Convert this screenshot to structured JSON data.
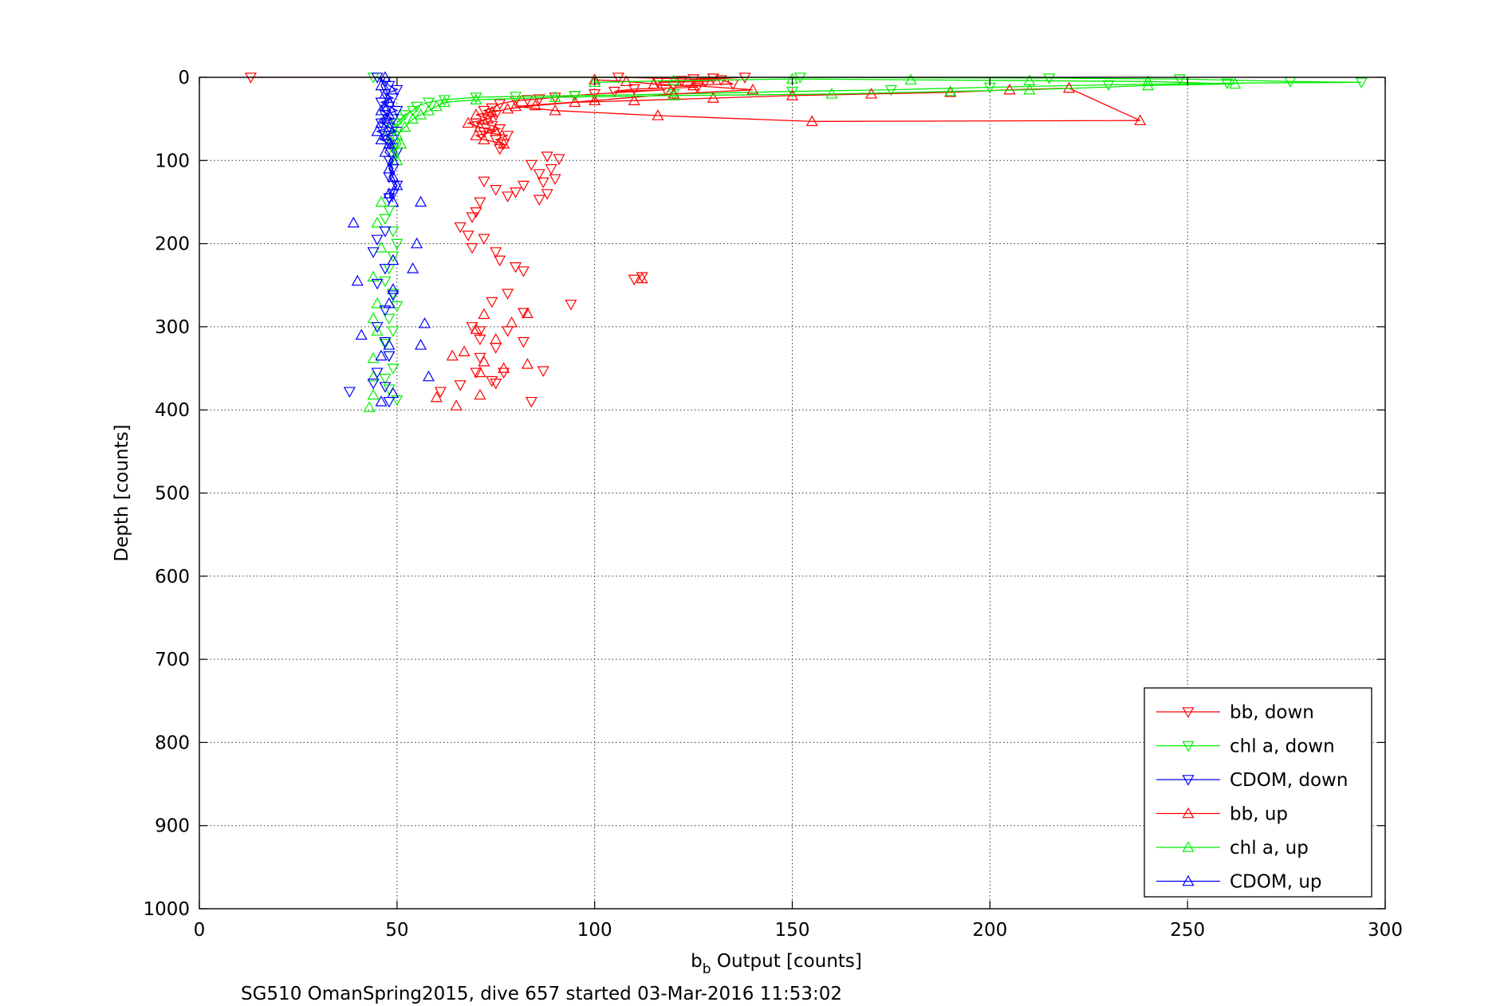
{
  "chart_data": {
    "type": "scatter",
    "xlabel_main": "b",
    "xlabel_sub": "b",
    "xlabel_rest": " Output [counts]",
    "ylabel": "Depth [counts]",
    "caption": "SG510 OmanSpring2015, dive 657 started 03-Mar-2016 11:53:02",
    "xlim": [
      0,
      300
    ],
    "ylim": [
      0,
      1000
    ],
    "y_reversed": true,
    "grid": true,
    "legend_position": "bottom-right",
    "xticks": [
      "0",
      "50",
      "100",
      "150",
      "200",
      "250",
      "300"
    ],
    "yticks": [
      "0",
      "100",
      "200",
      "300",
      "400",
      "500",
      "600",
      "700",
      "800",
      "900",
      "1000"
    ],
    "series": [
      {
        "name": "bb, down",
        "color": "#ff0000",
        "marker": "triangle-down",
        "line": true,
        "points": [
          [
            13,
            0
          ],
          [
            106,
            0
          ],
          [
            125,
            2
          ],
          [
            130,
            1
          ],
          [
            138,
            0
          ],
          [
            122,
            4
          ],
          [
            116,
            6
          ],
          [
            128,
            5
          ],
          [
            132,
            3
          ],
          [
            135,
            8
          ],
          [
            120,
            10
          ],
          [
            126,
            12
          ],
          [
            110,
            14
          ],
          [
            105,
            17
          ],
          [
            118,
            15
          ],
          [
            100,
            20
          ],
          [
            95,
            22
          ],
          [
            90,
            24
          ],
          [
            86,
            26
          ],
          [
            83,
            27
          ],
          [
            80,
            28
          ],
          [
            76,
            32
          ],
          [
            74,
            37
          ],
          [
            72,
            40
          ],
          [
            75,
            45
          ],
          [
            73,
            50
          ],
          [
            70,
            55
          ],
          [
            74,
            58
          ],
          [
            76,
            62
          ],
          [
            72,
            66
          ],
          [
            78,
            70
          ],
          [
            75,
            75
          ],
          [
            77,
            80
          ],
          [
            76,
            86
          ]
        ]
      },
      {
        "name": "chl a, down",
        "color": "#00ee00",
        "marker": "triangle-down",
        "line": true,
        "points": [
          [
            44,
            0
          ],
          [
            152,
            0
          ],
          [
            215,
            1
          ],
          [
            248,
            2
          ],
          [
            276,
            5
          ],
          [
            294,
            6
          ],
          [
            260,
            7
          ],
          [
            230,
            9
          ],
          [
            200,
            12
          ],
          [
            175,
            15
          ],
          [
            150,
            17
          ],
          [
            120,
            20
          ],
          [
            95,
            22
          ],
          [
            80,
            23
          ],
          [
            70,
            24
          ],
          [
            62,
            27
          ],
          [
            58,
            30
          ],
          [
            55,
            35
          ],
          [
            54,
            40
          ],
          [
            52,
            45
          ],
          [
            51,
            50
          ],
          [
            50,
            55
          ],
          [
            49,
            62
          ],
          [
            48,
            70
          ],
          [
            49,
            80
          ],
          [
            50,
            90
          ]
        ]
      },
      {
        "name": "CDOM, down",
        "color": "#0000ff",
        "marker": "triangle-down",
        "line": true,
        "points": [
          [
            45,
            0
          ],
          [
            47,
            5
          ],
          [
            48,
            10
          ],
          [
            50,
            15
          ],
          [
            47,
            20
          ],
          [
            49,
            25
          ],
          [
            46,
            30
          ],
          [
            48,
            35
          ],
          [
            50,
            40
          ],
          [
            47,
            45
          ],
          [
            49,
            50
          ],
          [
            46,
            55
          ],
          [
            48,
            60
          ],
          [
            50,
            65
          ],
          [
            47,
            70
          ],
          [
            49,
            75
          ],
          [
            48,
            80
          ],
          [
            49,
            85
          ],
          [
            50,
            90
          ],
          [
            48,
            100
          ],
          [
            49,
            110
          ],
          [
            48,
            120
          ],
          [
            50,
            130
          ],
          [
            49,
            140
          ],
          [
            48,
            145
          ]
        ]
      },
      {
        "name": "bb, up",
        "color": "#ff0000",
        "marker": "triangle-up",
        "line": true,
        "points": [
          [
            77,
            80
          ],
          [
            72,
            75
          ],
          [
            70,
            70
          ],
          [
            75,
            65
          ],
          [
            71,
            60
          ],
          [
            68,
            55
          ],
          [
            73,
            50
          ],
          [
            70,
            45
          ],
          [
            74,
            42
          ],
          [
            78,
            38
          ],
          [
            85,
            34
          ],
          [
            95,
            30
          ],
          [
            110,
            28
          ],
          [
            130,
            25
          ],
          [
            150,
            22
          ],
          [
            170,
            20
          ],
          [
            190,
            18
          ],
          [
            205,
            15
          ],
          [
            220,
            13
          ],
          [
            238,
            52
          ],
          [
            155,
            53
          ],
          [
            116,
            46
          ],
          [
            90,
            40
          ],
          [
            80,
            35
          ],
          [
            100,
            28
          ],
          [
            120,
            20
          ],
          [
            140,
            15
          ],
          [
            125,
            10
          ],
          [
            115,
            8
          ],
          [
            108,
            5
          ],
          [
            100,
            3
          ]
        ]
      },
      {
        "name": "chl a, up",
        "color": "#00ee00",
        "marker": "triangle-up",
        "line": true,
        "points": [
          [
            50,
            100
          ],
          [
            49,
            90
          ],
          [
            51,
            80
          ],
          [
            50,
            70
          ],
          [
            52,
            60
          ],
          [
            54,
            50
          ],
          [
            56,
            45
          ],
          [
            58,
            40
          ],
          [
            60,
            35
          ],
          [
            62,
            30
          ],
          [
            70,
            27
          ],
          [
            90,
            24
          ],
          [
            120,
            22
          ],
          [
            160,
            20
          ],
          [
            190,
            17
          ],
          [
            210,
            15
          ],
          [
            240,
            10
          ],
          [
            262,
            8
          ],
          [
            240,
            5
          ],
          [
            210,
            4
          ],
          [
            180,
            3
          ],
          [
            150,
            2
          ],
          [
            120,
            4
          ],
          [
            100,
            6
          ]
        ]
      },
      {
        "name": "CDOM, up",
        "color": "#0000ff",
        "marker": "triangle-up",
        "line": true,
        "points": [
          [
            49,
            150
          ],
          [
            48,
            140
          ],
          [
            50,
            130
          ],
          [
            49,
            120
          ],
          [
            48,
            110
          ],
          [
            49,
            100
          ],
          [
            47,
            90
          ],
          [
            48,
            80
          ],
          [
            46,
            75
          ],
          [
            47,
            70
          ],
          [
            45,
            65
          ],
          [
            48,
            60
          ],
          [
            46,
            55
          ],
          [
            47,
            50
          ],
          [
            48,
            45
          ],
          [
            46,
            40
          ],
          [
            47,
            35
          ],
          [
            48,
            30
          ],
          [
            47,
            20
          ],
          [
            46,
            10
          ],
          [
            47,
            0
          ]
        ]
      }
    ],
    "scatter_points": [
      {
        "series": "bb, down",
        "points": [
          [
            88,
            95
          ],
          [
            91,
            98
          ],
          [
            84,
            105
          ],
          [
            89,
            110
          ],
          [
            86,
            116
          ],
          [
            90,
            122
          ],
          [
            87,
            126
          ],
          [
            82,
            130
          ],
          [
            80,
            138
          ],
          [
            78,
            143
          ],
          [
            86,
            147
          ],
          [
            88,
            140
          ],
          [
            72,
            125
          ],
          [
            75,
            135
          ],
          [
            71,
            150
          ],
          [
            70,
            162
          ],
          [
            69,
            168
          ],
          [
            66,
            180
          ],
          [
            68,
            190
          ],
          [
            72,
            194
          ],
          [
            69,
            205
          ],
          [
            75,
            210
          ],
          [
            76,
            220
          ],
          [
            80,
            228
          ],
          [
            82,
            233
          ],
          [
            94,
            273
          ],
          [
            112,
            240
          ],
          [
            110,
            243
          ],
          [
            78,
            260
          ],
          [
            74,
            270
          ],
          [
            82,
            283
          ],
          [
            69,
            300
          ],
          [
            71,
            305
          ],
          [
            78,
            305
          ],
          [
            71,
            315
          ],
          [
            82,
            318
          ],
          [
            75,
            325
          ],
          [
            71,
            337
          ],
          [
            70,
            355
          ],
          [
            77,
            355
          ],
          [
            74,
            365
          ],
          [
            87,
            353
          ],
          [
            66,
            370
          ],
          [
            61,
            378
          ],
          [
            75,
            368
          ],
          [
            84,
            390
          ]
        ]
      },
      {
        "series": "bb, up",
        "points": [
          [
            112,
            242
          ],
          [
            83,
            284
          ],
          [
            79,
            295
          ],
          [
            72,
            285
          ],
          [
            70,
            303
          ],
          [
            75,
            315
          ],
          [
            67,
            330
          ],
          [
            64,
            335
          ],
          [
            72,
            342
          ],
          [
            77,
            350
          ],
          [
            83,
            345
          ],
          [
            71,
            355
          ],
          [
            65,
            395
          ],
          [
            71,
            382
          ],
          [
            60,
            385
          ]
        ]
      },
      {
        "series": "chl a, down",
        "points": [
          [
            48,
            160
          ],
          [
            47,
            170
          ],
          [
            49,
            185
          ],
          [
            50,
            200
          ],
          [
            49,
            215
          ],
          [
            48,
            230
          ],
          [
            47,
            245
          ],
          [
            49,
            260
          ],
          [
            50,
            275
          ],
          [
            48,
            290
          ],
          [
            49,
            305
          ],
          [
            47,
            320
          ],
          [
            48,
            335
          ],
          [
            49,
            350
          ],
          [
            47,
            362
          ],
          [
            48,
            375
          ],
          [
            50,
            388
          ]
        ]
      },
      {
        "series": "chl a, up",
        "points": [
          [
            46,
            150
          ],
          [
            45,
            175
          ],
          [
            46,
            205
          ],
          [
            44,
            240
          ],
          [
            45,
            272
          ],
          [
            44,
            290
          ],
          [
            45,
            305
          ],
          [
            44,
            338
          ],
          [
            44,
            360
          ],
          [
            44,
            382
          ],
          [
            43,
            397
          ]
        ]
      },
      {
        "series": "CDOM, down",
        "points": [
          [
            47,
            185
          ],
          [
            45,
            195
          ],
          [
            44,
            210
          ],
          [
            47,
            230
          ],
          [
            45,
            248
          ],
          [
            49,
            262
          ],
          [
            47,
            280
          ],
          [
            45,
            300
          ],
          [
            47,
            318
          ],
          [
            48,
            335
          ],
          [
            45,
            355
          ],
          [
            47,
            372
          ],
          [
            38,
            378
          ],
          [
            44,
            368
          ],
          [
            48,
            390
          ]
        ]
      },
      {
        "series": "CDOM, up",
        "points": [
          [
            39,
            175
          ],
          [
            56,
            150
          ],
          [
            55,
            200
          ],
          [
            49,
            220
          ],
          [
            54,
            230
          ],
          [
            40,
            245
          ],
          [
            49,
            255
          ],
          [
            48,
            272
          ],
          [
            57,
            296
          ],
          [
            41,
            310
          ],
          [
            48,
            322
          ],
          [
            46,
            335
          ],
          [
            56,
            322
          ],
          [
            58,
            360
          ],
          [
            49,
            380
          ],
          [
            46,
            390
          ]
        ]
      }
    ]
  }
}
